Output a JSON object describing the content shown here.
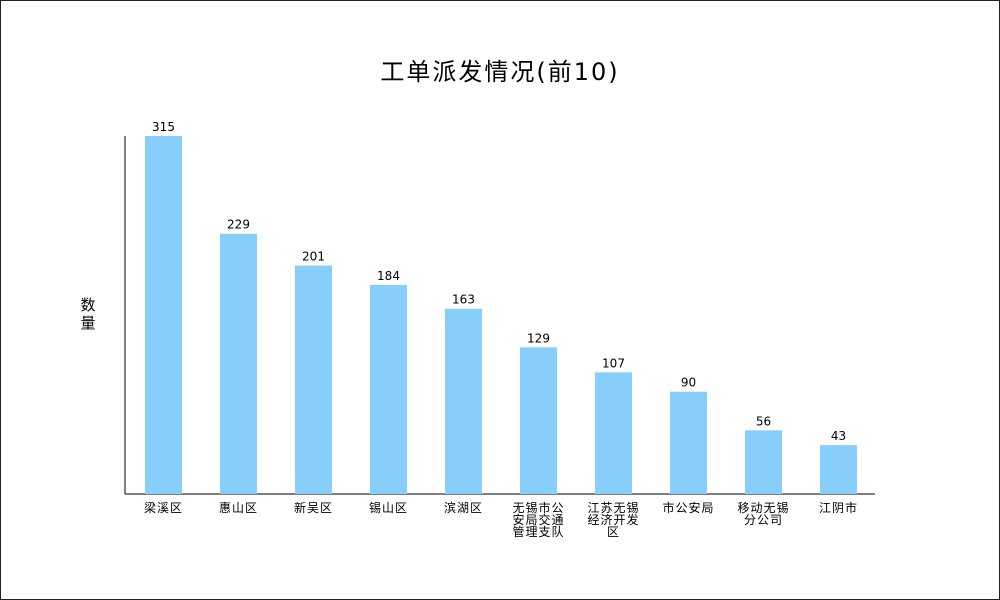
{
  "chart_data": {
    "type": "bar",
    "title": "工单派发情况(前10)",
    "xlabel": "",
    "ylabel": "数量",
    "categories": [
      [
        "梁溪区"
      ],
      [
        "惠山区"
      ],
      [
        "新吴区"
      ],
      [
        "锡山区"
      ],
      [
        "滨湖区"
      ],
      [
        "无锡市公",
        "安局交通",
        "管理支队"
      ],
      [
        "江苏无锡",
        "经济开发",
        "区"
      ],
      [
        "市公安局"
      ],
      [
        "移动无锡",
        "分公司"
      ],
      [
        "江阴市"
      ]
    ],
    "values": [
      315,
      229,
      201,
      184,
      163,
      129,
      107,
      90,
      56,
      43
    ],
    "ylim": [
      0,
      320
    ],
    "grid": false,
    "legend": "none",
    "bar_color": "#87CEFA"
  }
}
